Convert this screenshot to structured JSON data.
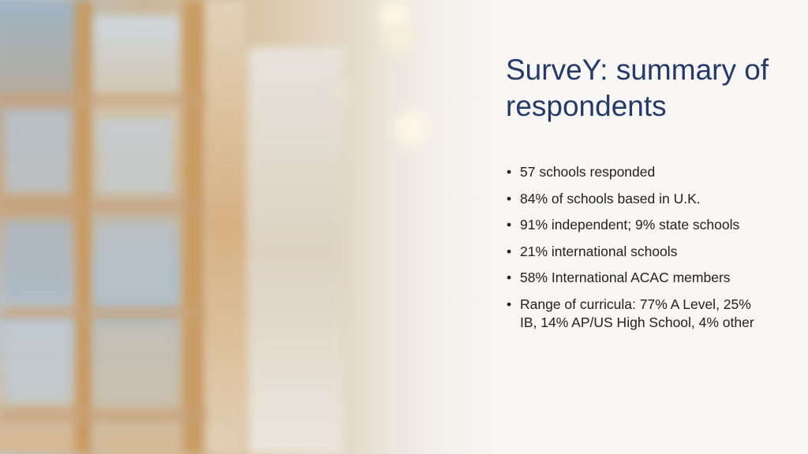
{
  "slide": {
    "title": "SurveY: summary of respondents",
    "bullet_glyph": "•",
    "bullets": [
      "57 schools responded",
      "84% of schools based in U.K.",
      "91% independent; 9% state schools",
      "21% international schools",
      "58% International ACAC members",
      "Range of curricula: 77% A Level, 25% IB, 14% AP/US High School, 4% other"
    ]
  },
  "background": {
    "description_icon": "blurred-library-bookshelves-photo",
    "title_color": "#253a68",
    "text_color": "#222222"
  }
}
